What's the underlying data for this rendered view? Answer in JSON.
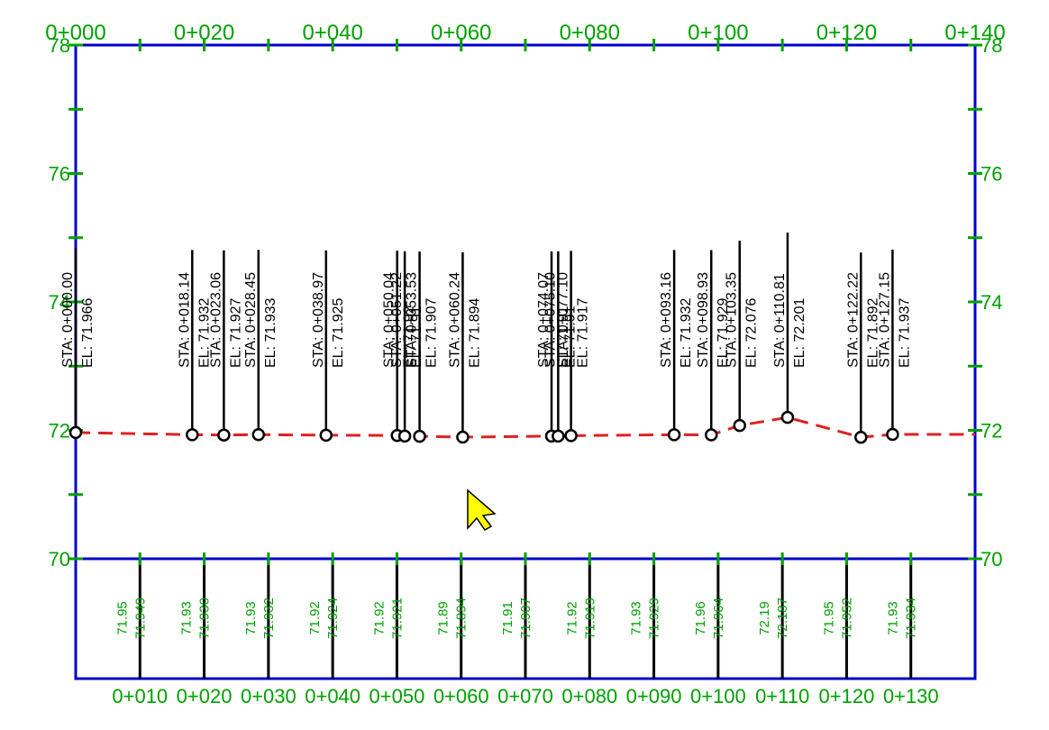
{
  "chart_data": {
    "type": "line",
    "x_ticks_top": [
      "0+000",
      "0+020",
      "0+040",
      "0+060",
      "0+080",
      "0+100",
      "0+120",
      "0+140"
    ],
    "y_ticks": [
      "70",
      "72",
      "74",
      "76",
      "78"
    ],
    "xlim": [
      0,
      140
    ],
    "ylim": [
      70,
      78
    ],
    "profile_color": "#e02020",
    "grid_color": "#00a000",
    "frame_color": "#0000cc",
    "points": [
      {
        "sta": 0.0,
        "sta_label": "STA: 0+000.00",
        "el_label": "EL: 71.966",
        "el": 71.966
      },
      {
        "sta": 18.14,
        "sta_label": "STA: 0+018.14",
        "el_label": "EL: 71.932",
        "el": 71.932
      },
      {
        "sta": 23.06,
        "sta_label": "STA: 0+023.06",
        "el_label": "EL: 71.927",
        "el": 71.927
      },
      {
        "sta": 28.45,
        "sta_label": "STA: 0+028.45",
        "el_label": "EL: 71.933",
        "el": 71.933
      },
      {
        "sta": 38.97,
        "sta_label": "STA: 0+038.97",
        "el_label": "EL: 71.925",
        "el": 71.925
      },
      {
        "sta": 50.04,
        "sta_label": "STA: 0+050.04",
        "el_label": "EL: 71.92",
        "el": 71.92
      },
      {
        "sta": 51.22,
        "sta_label": "STA: 0+051.22",
        "el_label": "EL: 71.91",
        "el": 71.91
      },
      {
        "sta": 53.53,
        "sta_label": "STA: 0+053.53",
        "el_label": "EL: 71.907",
        "el": 71.907
      },
      {
        "sta": 60.24,
        "sta_label": "STA: 0+060.24",
        "el_label": "EL: 71.894",
        "el": 71.894
      },
      {
        "sta": 74.07,
        "sta_label": "STA: 0+074.07",
        "el_label": "EL: 71.91",
        "el": 71.91
      },
      {
        "sta": 75.1,
        "sta_label": "STA: 0+075.10",
        "el_label": "EL: 71.91",
        "el": 71.91
      },
      {
        "sta": 77.1,
        "sta_label": "STA: 0+077.10",
        "el_label": "EL: 71.917",
        "el": 71.917
      },
      {
        "sta": 93.16,
        "sta_label": "STA: 0+093.16",
        "el_label": "EL: 71.932",
        "el": 71.932
      },
      {
        "sta": 98.93,
        "sta_label": "STA: 0+098.93",
        "el_label": "EL: 71.929",
        "el": 71.929
      },
      {
        "sta": 103.35,
        "sta_label": "STA: 0+103.35",
        "el_label": "EL: 72.076",
        "el": 72.076
      },
      {
        "sta": 110.81,
        "sta_label": "STA: 0+110.81",
        "el_label": "EL: 72.201",
        "el": 72.201
      },
      {
        "sta": 122.22,
        "sta_label": "STA: 0+122.22",
        "el_label": "EL: 71.892",
        "el": 71.892
      },
      {
        "sta": 127.15,
        "sta_label": "STA: 0+127.15",
        "el_label": "EL: 71.937",
        "el": 71.937
      }
    ],
    "band_sections": [
      {
        "sta": 10,
        "top_label": "71.95",
        "bottom_label": "71.949",
        "station_label": "0+010"
      },
      {
        "sta": 20,
        "top_label": "71.93",
        "bottom_label": "71.930",
        "station_label": "0+020"
      },
      {
        "sta": 30,
        "top_label": "71.93",
        "bottom_label": "71.932",
        "station_label": "0+030"
      },
      {
        "sta": 40,
        "top_label": "71.92",
        "bottom_label": "71.924",
        "station_label": "0+040"
      },
      {
        "sta": 50,
        "top_label": "71.92",
        "bottom_label": "71.921",
        "station_label": "0+050"
      },
      {
        "sta": 60,
        "top_label": "71.89",
        "bottom_label": "71.894",
        "station_label": "0+060"
      },
      {
        "sta": 70,
        "top_label": "71.91",
        "bottom_label": "71.907",
        "station_label": "0+070"
      },
      {
        "sta": 80,
        "top_label": "71.92",
        "bottom_label": "71.919",
        "station_label": "0+080"
      },
      {
        "sta": 90,
        "top_label": "71.93",
        "bottom_label": "71.929",
        "station_label": "0+090"
      },
      {
        "sta": 100,
        "top_label": "71.96",
        "bottom_label": "71.964",
        "station_label": "0+100"
      },
      {
        "sta": 110,
        "top_label": "72.19",
        "bottom_label": "72.187",
        "station_label": "0+110"
      },
      {
        "sta": 120,
        "top_label": "71.95",
        "bottom_label": "71.952",
        "station_label": "0+120"
      },
      {
        "sta": 130,
        "top_label": "71.93",
        "bottom_label": "71.934",
        "station_label": "0+130"
      }
    ]
  },
  "cursor": {
    "icon": "mouse-pointer-icon",
    "color": "#ffff00"
  }
}
